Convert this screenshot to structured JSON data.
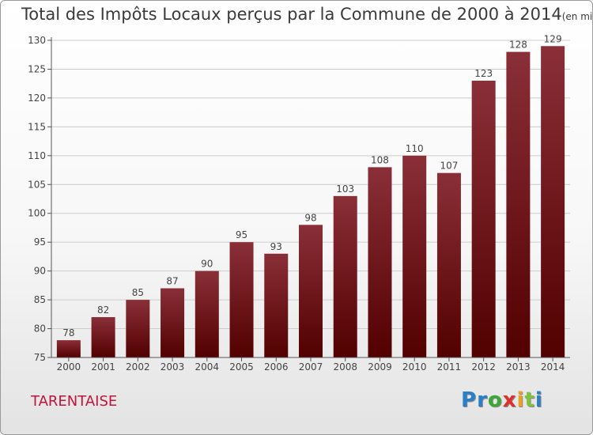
{
  "title": "Total des Impôts Locaux perçus par la Commune de 2000 à 2014",
  "title_unit": "(en milliers d'€)",
  "commune": "TARENTAISE",
  "logo": {
    "letters": [
      "P",
      "r",
      "o",
      "x",
      "i",
      "t",
      "i"
    ],
    "colors": [
      "#2a7fc9",
      "#2a7fc9",
      "#3aa836",
      "#e0302a",
      "#f0a020",
      "#7fc241",
      "#2a7fc9"
    ]
  },
  "colors": {
    "bar_top": "#8a2f38",
    "bar_bottom": "#520000",
    "grid": "#cccccc",
    "commune": "#c0143c"
  },
  "chart_data": {
    "type": "bar",
    "title": "Total des Impôts Locaux perçus par la Commune de 2000 à 2014",
    "categories": [
      "2000",
      "2001",
      "2002",
      "2003",
      "2004",
      "2005",
      "2006",
      "2007",
      "2008",
      "2009",
      "2010",
      "2011",
      "2012",
      "2013",
      "2014"
    ],
    "values": [
      78,
      82,
      85,
      87,
      90,
      95,
      93,
      98,
      103,
      108,
      110,
      107,
      123,
      128,
      129
    ],
    "yticks": [
      75,
      80,
      85,
      90,
      95,
      100,
      105,
      110,
      115,
      120,
      125,
      130
    ],
    "ylim": [
      75,
      130
    ],
    "xlabel": "",
    "ylabel": "",
    "grid": true,
    "legend": "none"
  }
}
